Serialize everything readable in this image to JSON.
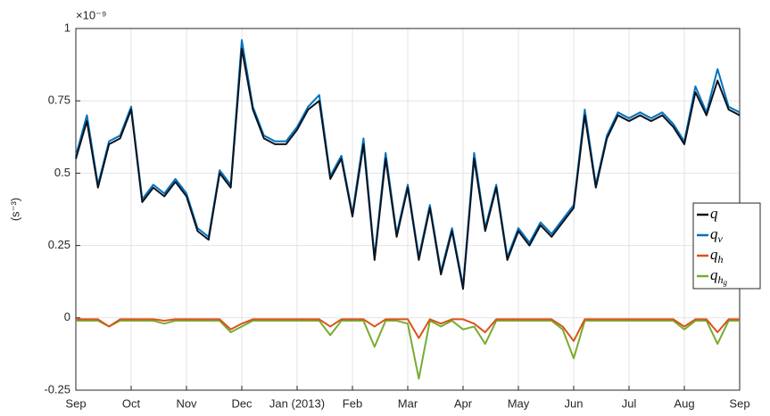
{
  "chart_data": {
    "type": "line",
    "y_multiplier": "×10⁻⁹",
    "ylabel": "(s⁻³)",
    "x": [
      0,
      0.2,
      0.4,
      0.6,
      0.8,
      1,
      1.2,
      1.4,
      1.6,
      1.8,
      2,
      2.2,
      2.4,
      2.6,
      2.8,
      3,
      3.2,
      3.4,
      3.6,
      3.8,
      4,
      4.2,
      4.4,
      4.6,
      4.8,
      5,
      5.2,
      5.4,
      5.6,
      5.8,
      6,
      6.2,
      6.4,
      6.6,
      6.8,
      7,
      7.2,
      7.4,
      7.6,
      7.8,
      8,
      8.2,
      8.4,
      8.6,
      8.8,
      9,
      9.2,
      9.4,
      9.6,
      9.8,
      10,
      10.2,
      10.4,
      10.6,
      10.8,
      11,
      11.2,
      11.4,
      11.6,
      11.8,
      12
    ],
    "xlim": [
      0,
      12
    ],
    "xticks": [
      {
        "value": 0,
        "label": "Sep"
      },
      {
        "value": 1,
        "label": "Oct"
      },
      {
        "value": 2,
        "label": "Nov"
      },
      {
        "value": 3,
        "label": "Dec"
      },
      {
        "value": 4,
        "label": "Jan (2013)"
      },
      {
        "value": 5,
        "label": "Feb"
      },
      {
        "value": 6,
        "label": "Mar"
      },
      {
        "value": 7,
        "label": "Apr"
      },
      {
        "value": 8,
        "label": "May"
      },
      {
        "value": 9,
        "label": "Jun"
      },
      {
        "value": 10,
        "label": "Jul"
      },
      {
        "value": 11,
        "label": "Aug"
      },
      {
        "value": 12,
        "label": "Sep"
      }
    ],
    "ylim": [
      -0.25,
      1
    ],
    "yticks": [
      -0.25,
      0,
      0.25,
      0.5,
      0.75,
      1
    ],
    "grid": true,
    "legend_position": "right",
    "series": [
      {
        "name": "q",
        "color": "#0b1320",
        "values": [
          0.55,
          0.68,
          0.45,
          0.6,
          0.62,
          0.72,
          0.4,
          0.45,
          0.42,
          0.47,
          0.42,
          0.3,
          0.27,
          0.5,
          0.45,
          0.93,
          0.72,
          0.62,
          0.6,
          0.6,
          0.65,
          0.72,
          0.75,
          0.48,
          0.55,
          0.35,
          0.6,
          0.2,
          0.55,
          0.28,
          0.45,
          0.2,
          0.38,
          0.15,
          0.3,
          0.1,
          0.55,
          0.3,
          0.45,
          0.2,
          0.3,
          0.25,
          0.32,
          0.28,
          0.33,
          0.38,
          0.7,
          0.45,
          0.62,
          0.7,
          0.68,
          0.7,
          0.68,
          0.7,
          0.66,
          0.6,
          0.78,
          0.7,
          0.82,
          0.72,
          0.7
        ]
      },
      {
        "name": "q",
        "subscript": "v",
        "color": "#0072bd",
        "values": [
          0.56,
          0.7,
          0.46,
          0.61,
          0.63,
          0.73,
          0.41,
          0.46,
          0.43,
          0.48,
          0.43,
          0.31,
          0.28,
          0.51,
          0.46,
          0.96,
          0.73,
          0.63,
          0.61,
          0.61,
          0.66,
          0.73,
          0.77,
          0.49,
          0.56,
          0.36,
          0.62,
          0.21,
          0.57,
          0.29,
          0.46,
          0.21,
          0.39,
          0.16,
          0.31,
          0.11,
          0.57,
          0.31,
          0.46,
          0.21,
          0.31,
          0.26,
          0.33,
          0.29,
          0.34,
          0.39,
          0.72,
          0.46,
          0.63,
          0.71,
          0.69,
          0.71,
          0.69,
          0.71,
          0.67,
          0.61,
          0.8,
          0.71,
          0.86,
          0.73,
          0.71
        ]
      },
      {
        "name": "q",
        "subscript": "h",
        "color": "#d95319",
        "values": [
          -0.005,
          -0.005,
          -0.005,
          -0.03,
          -0.005,
          -0.005,
          -0.005,
          -0.005,
          -0.01,
          -0.005,
          -0.005,
          -0.005,
          -0.005,
          -0.005,
          -0.04,
          -0.02,
          -0.005,
          -0.005,
          -0.005,
          -0.005,
          -0.005,
          -0.005,
          -0.005,
          -0.03,
          -0.005,
          -0.005,
          -0.005,
          -0.03,
          -0.005,
          -0.005,
          -0.005,
          -0.07,
          -0.005,
          -0.02,
          -0.005,
          -0.005,
          -0.02,
          -0.05,
          -0.005,
          -0.005,
          -0.005,
          -0.005,
          -0.005,
          -0.005,
          -0.03,
          -0.08,
          -0.005,
          -0.005,
          -0.005,
          -0.005,
          -0.005,
          -0.005,
          -0.005,
          -0.005,
          -0.005,
          -0.03,
          -0.005,
          -0.005,
          -0.05,
          -0.005,
          -0.005
        ]
      },
      {
        "name": "q",
        "subscript": "h",
        "subsubscript": "g",
        "color": "#77ac30",
        "values": [
          -0.01,
          -0.01,
          -0.01,
          -0.03,
          -0.01,
          -0.01,
          -0.01,
          -0.01,
          -0.02,
          -0.01,
          -0.01,
          -0.01,
          -0.01,
          -0.01,
          -0.05,
          -0.03,
          -0.01,
          -0.01,
          -0.01,
          -0.01,
          -0.01,
          -0.01,
          -0.01,
          -0.06,
          -0.01,
          -0.01,
          -0.01,
          -0.1,
          -0.01,
          -0.01,
          -0.02,
          -0.21,
          -0.01,
          -0.03,
          -0.01,
          -0.04,
          -0.03,
          -0.09,
          -0.01,
          -0.01,
          -0.01,
          -0.01,
          -0.01,
          -0.01,
          -0.04,
          -0.14,
          -0.01,
          -0.01,
          -0.01,
          -0.01,
          -0.01,
          -0.01,
          -0.01,
          -0.01,
          -0.01,
          -0.04,
          -0.01,
          -0.01,
          -0.09,
          -0.01,
          -0.01
        ]
      }
    ]
  }
}
